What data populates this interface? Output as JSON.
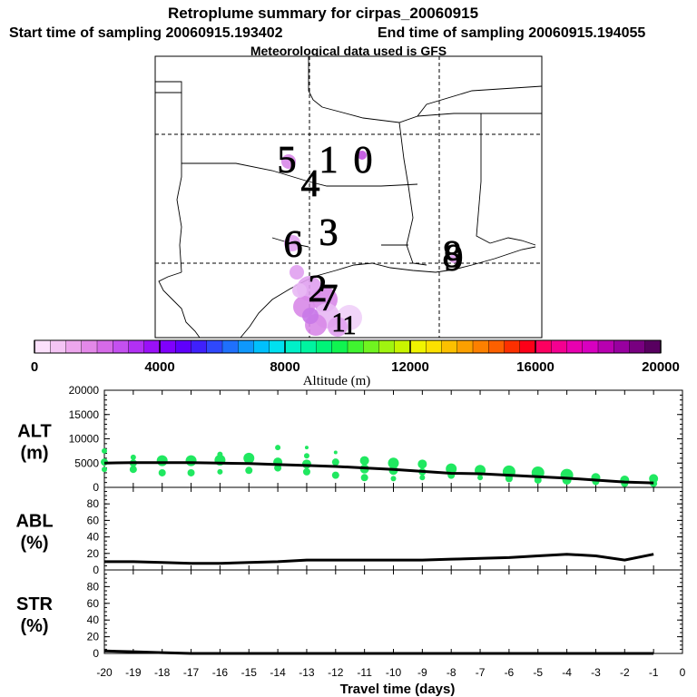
{
  "title": "Retroplume summary for cirpas_20060915",
  "start_label": "Start time of sampling 20060915.193402",
  "end_label": "End time of sampling 20060915.194055",
  "met_label": "Meteorological data used is GFS",
  "map": {
    "day_labels": [
      {
        "text": "5",
        "day": 5,
        "color": "#d888e8"
      },
      {
        "text": "1",
        "day": 1,
        "color": "#c050e0"
      },
      {
        "text": "0",
        "day": 0,
        "color": "#c050e0"
      },
      {
        "text": "4",
        "day": 4,
        "color": "#d070e8"
      },
      {
        "text": "6",
        "day": 6,
        "color": "#e0a0f0"
      },
      {
        "text": "3",
        "day": 3,
        "color": "#d888e8"
      },
      {
        "text": "8",
        "day": 8,
        "color": "#e0a0f0"
      },
      {
        "text": "9",
        "day": 9,
        "color": "#e0a0f0"
      },
      {
        "text": "2",
        "day": 2,
        "color": "#d888e8"
      },
      {
        "text": "7",
        "day": 7,
        "color": "#e0a0f0"
      },
      {
        "text": "1",
        "day": 11,
        "color": "#e0a0f0"
      },
      {
        "text": "1",
        "day": 12,
        "color": "#e0a0f0"
      }
    ]
  },
  "colorbar": {
    "label": "Altitude (m)",
    "tick_labels": [
      "0",
      "4000",
      "8000",
      "12000",
      "16000",
      "20000"
    ],
    "min": 0,
    "max": 20000,
    "colors": [
      "#fbe0fb",
      "#f4c4f4",
      "#eda6ed",
      "#e388e8",
      "#d66ae8",
      "#c450f0",
      "#b230f4",
      "#9a10f8",
      "#7f00fc",
      "#5f00fc",
      "#3f20fc",
      "#2f48fc",
      "#1f70fc",
      "#0f98fc",
      "#00c0fc",
      "#00e0f0",
      "#00f0c8",
      "#00f4a0",
      "#00f478",
      "#10f450",
      "#40f430",
      "#70f420",
      "#a0f410",
      "#c8f400",
      "#f0f400",
      "#fce000",
      "#fcc000",
      "#fca000",
      "#fc8000",
      "#fc6000",
      "#fc3000",
      "#fc0018",
      "#fc0060",
      "#f40090",
      "#e800b0",
      "#d800c0",
      "#b800b0",
      "#9800a0",
      "#780080",
      "#580060"
    ]
  },
  "xaxis": {
    "label": "Travel time (days)",
    "tick_labels": [
      "-20",
      "-19",
      "-18",
      "-17",
      "-16",
      "-15",
      "-14",
      "-13",
      "-12",
      "-11",
      "-10",
      "-9",
      "-8",
      "-7",
      "-6",
      "-5",
      "-4",
      "-3",
      "-2",
      "-1",
      "0"
    ],
    "min": -20,
    "max": 0
  },
  "chart_data": [
    {
      "type": "line",
      "name": "ALT",
      "ylabel": "ALT\n(m)",
      "ylabel_line1": "ALT",
      "ylabel_line2": "(m)",
      "ylim": [
        0,
        20000
      ],
      "ytick_labels": [
        "0",
        "5000",
        "10000",
        "15000",
        "20000"
      ],
      "line": {
        "x": [
          -20,
          -19,
          -18,
          -17,
          -16,
          -15,
          -14,
          -13,
          -12,
          -11,
          -10,
          -9,
          -8,
          -7,
          -6,
          -5,
          -4,
          -3,
          -2,
          -1
        ],
        "y": [
          5000,
          5100,
          5100,
          5100,
          5000,
          4900,
          4700,
          4500,
          4300,
          4000,
          3700,
          3300,
          2900,
          2800,
          2500,
          2200,
          1900,
          1500,
          1100,
          900
        ]
      },
      "points": [
        {
          "x": -20,
          "y": 7500,
          "s": 3
        },
        {
          "x": -20,
          "y": 5200,
          "s": 4
        },
        {
          "x": -20,
          "y": 3700,
          "s": 3
        },
        {
          "x": -19,
          "y": 6200,
          "s": 3
        },
        {
          "x": -19,
          "y": 5000,
          "s": 4
        },
        {
          "x": -19,
          "y": 3700,
          "s": 4
        },
        {
          "x": -18,
          "y": 5500,
          "s": 6
        },
        {
          "x": -18,
          "y": 3000,
          "s": 4
        },
        {
          "x": -17,
          "y": 5500,
          "s": 6
        },
        {
          "x": -17,
          "y": 3000,
          "s": 4
        },
        {
          "x": -16,
          "y": 6800,
          "s": 3
        },
        {
          "x": -16,
          "y": 5600,
          "s": 6
        },
        {
          "x": -16,
          "y": 3200,
          "s": 3
        },
        {
          "x": -15,
          "y": 6000,
          "s": 6
        },
        {
          "x": -15,
          "y": 3500,
          "s": 4
        },
        {
          "x": -14,
          "y": 8200,
          "s": 3
        },
        {
          "x": -14,
          "y": 5200,
          "s": 5
        },
        {
          "x": -14,
          "y": 4000,
          "s": 4
        },
        {
          "x": -13,
          "y": 8200,
          "s": 2
        },
        {
          "x": -13,
          "y": 6500,
          "s": 3
        },
        {
          "x": -13,
          "y": 4800,
          "s": 5
        },
        {
          "x": -13,
          "y": 3200,
          "s": 4
        },
        {
          "x": -12,
          "y": 7200,
          "s": 2
        },
        {
          "x": -12,
          "y": 5200,
          "s": 4
        },
        {
          "x": -12,
          "y": 2500,
          "s": 4
        },
        {
          "x": -11,
          "y": 5500,
          "s": 5
        },
        {
          "x": -11,
          "y": 3800,
          "s": 5
        },
        {
          "x": -11,
          "y": 2000,
          "s": 4
        },
        {
          "x": -10,
          "y": 5000,
          "s": 6
        },
        {
          "x": -10,
          "y": 3500,
          "s": 5
        },
        {
          "x": -10,
          "y": 1800,
          "s": 3
        },
        {
          "x": -9,
          "y": 4800,
          "s": 5
        },
        {
          "x": -9,
          "y": 3200,
          "s": 4
        },
        {
          "x": -9,
          "y": 2000,
          "s": 3
        },
        {
          "x": -8,
          "y": 3800,
          "s": 6
        },
        {
          "x": -8,
          "y": 2500,
          "s": 4
        },
        {
          "x": -7,
          "y": 3500,
          "s": 6
        },
        {
          "x": -7,
          "y": 2000,
          "s": 3
        },
        {
          "x": -6,
          "y": 3200,
          "s": 7
        },
        {
          "x": -6,
          "y": 1800,
          "s": 4
        },
        {
          "x": -5,
          "y": 3000,
          "s": 7
        },
        {
          "x": -5,
          "y": 1500,
          "s": 4
        },
        {
          "x": -4,
          "y": 2500,
          "s": 7
        },
        {
          "x": -4,
          "y": 1500,
          "s": 5
        },
        {
          "x": -3,
          "y": 2000,
          "s": 5
        },
        {
          "x": -3,
          "y": 1200,
          "s": 4
        },
        {
          "x": -2,
          "y": 1500,
          "s": 5
        },
        {
          "x": -2,
          "y": 800,
          "s": 4
        },
        {
          "x": -1,
          "y": 1800,
          "s": 5
        },
        {
          "x": -1,
          "y": 800,
          "s": 4
        }
      ]
    },
    {
      "type": "line",
      "name": "ABL",
      "ylabel": "ABL\n(%)",
      "ylabel_line1": "ABL",
      "ylabel_line2": "(%)",
      "ylim": [
        0,
        100
      ],
      "ytick_labels": [
        "0",
        "20",
        "40",
        "60",
        "80"
      ],
      "line": {
        "x": [
          -20,
          -19,
          -18,
          -17,
          -16,
          -15,
          -14,
          -13,
          -12,
          -11,
          -10,
          -9,
          -8,
          -7,
          -6,
          -5,
          -4,
          -3,
          -2,
          -1
        ],
        "y": [
          10,
          10,
          9,
          8,
          8,
          9,
          10,
          12,
          12,
          12,
          12,
          12,
          13,
          14,
          15,
          17,
          19,
          17,
          12,
          19
        ]
      }
    },
    {
      "type": "line",
      "name": "STR",
      "ylabel": "STR\n(%)",
      "ylabel_line1": "STR",
      "ylabel_line2": "(%)",
      "ylim": [
        0,
        100
      ],
      "ytick_labels": [
        "0",
        "20",
        "40",
        "60",
        "80"
      ],
      "line": {
        "x": [
          -20,
          -19,
          -18,
          -17,
          -16,
          -15,
          -14,
          -13,
          -12,
          -11,
          -10,
          -9,
          -8,
          -7,
          -6,
          -5,
          -4,
          -3,
          -2,
          -1
        ],
        "y": [
          3,
          2,
          1,
          0,
          0,
          0,
          0,
          0,
          0,
          0,
          0,
          0,
          0,
          0,
          0,
          0,
          0,
          0,
          0,
          0
        ]
      }
    }
  ]
}
